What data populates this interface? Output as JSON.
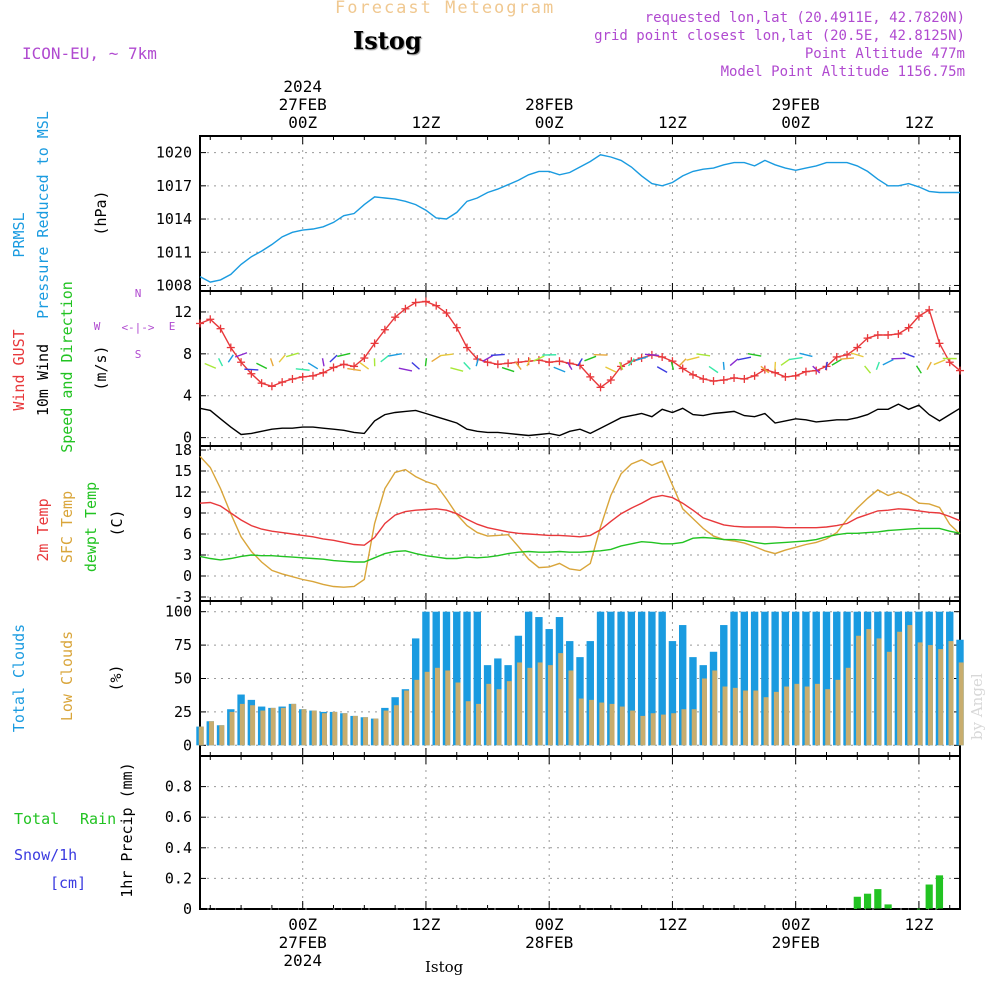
{
  "header": {
    "title": "Forecast Meteogram",
    "station": "Istog",
    "model": "ICON-EU, ~ 7km",
    "requested": "requested lon,lat (20.4911E, 42.7820N)",
    "gridpoint": "grid point closest lon,lat (20.5E, 42.8125N)",
    "altitude": "Point Altitude 477m",
    "model_altitude": "Model Point Altitude 1156.75m",
    "watermark": "by Angel",
    "footer_station": "Istog"
  },
  "colors": {
    "pressure": "#1a9be0",
    "gust": "#e8383b",
    "wind": "#000000",
    "temp": "#e8383b",
    "sfc": "#d9a53a",
    "dewpt": "#22c322",
    "total_clouds": "#1a9be0",
    "low_clouds": "#c8ad6e",
    "rain": "#22c322",
    "snow": "#3a3ae0",
    "header_title": "#f0c890",
    "header_info": "#b04ad0"
  },
  "chart_data": [
    {
      "type": "line",
      "panel": "pressure",
      "ylabel": [
        "PRMSL",
        "Pressure Reduced to MSL",
        "(hPa)"
      ],
      "yticks": [
        1008,
        1011,
        1014,
        1017,
        1020
      ],
      "ylim": [
        1007.5,
        1021.5
      ],
      "x_hours": [
        -10,
        -9,
        -8,
        -7,
        -6,
        -5,
        -4,
        -3,
        -2,
        -1,
        0,
        1,
        2,
        3,
        4,
        5,
        6,
        7,
        8,
        9,
        10,
        11,
        12,
        13,
        14,
        15,
        16,
        17,
        18,
        19,
        20,
        21,
        22,
        23,
        24,
        25,
        26,
        27,
        28,
        29,
        30,
        31,
        32,
        33,
        34,
        35,
        36,
        37,
        38,
        39,
        40,
        41,
        42,
        43,
        44,
        45,
        46,
        47,
        48,
        49,
        50,
        51,
        52,
        53,
        54,
        55,
        56,
        57,
        58,
        59,
        60,
        61,
        62,
        63,
        64
      ],
      "series": [
        {
          "name": "PRMSL",
          "values": [
            1008.8,
            1008.3,
            1008.5,
            1009.0,
            1009.9,
            1010.6,
            1011.1,
            1011.7,
            1012.4,
            1012.8,
            1013.0,
            1013.1,
            1013.3,
            1013.7,
            1014.3,
            1014.5,
            1015.3,
            1016.0,
            1015.9,
            1015.8,
            1015.6,
            1015.3,
            1014.8,
            1014.1,
            1014.0,
            1014.6,
            1015.6,
            1015.9,
            1016.4,
            1016.7,
            1017.1,
            1017.5,
            1018.0,
            1018.3,
            1018.3,
            1018.0,
            1018.2,
            1018.7,
            1019.2,
            1019.8,
            1019.6,
            1019.3,
            1018.7,
            1017.9,
            1017.2,
            1017.0,
            1017.3,
            1017.9,
            1018.3,
            1018.5,
            1018.6,
            1018.9,
            1019.1,
            1019.1,
            1018.8,
            1019.3,
            1018.9,
            1018.6,
            1018.4,
            1018.6,
            1018.8,
            1019.1,
            1019.1,
            1019.1,
            1018.8,
            1018.3,
            1017.6,
            1017.0,
            1017.0,
            1017.2,
            1016.9,
            1016.5,
            1016.4,
            1016.4,
            1016.4
          ]
        }
      ]
    },
    {
      "type": "line",
      "panel": "wind",
      "ylabel": [
        "Wind GUST",
        "10m Wind",
        "Speed and Direction",
        "(m/s)"
      ],
      "direction_legend": {
        "n": "N",
        "s": "S",
        "w": "W",
        "e": "E",
        "arrows": "<-|->"
      },
      "yticks": [
        0,
        4,
        8,
        12
      ],
      "ylim": [
        -0.8,
        14
      ],
      "x_hours": [
        -10,
        -9,
        -8,
        -7,
        -6,
        -5,
        -4,
        -3,
        -2,
        -1,
        0,
        1,
        2,
        3,
        4,
        5,
        6,
        7,
        8,
        9,
        10,
        11,
        12,
        13,
        14,
        15,
        16,
        17,
        18,
        19,
        20,
        21,
        22,
        23,
        24,
        25,
        26,
        27,
        28,
        29,
        30,
        31,
        32,
        33,
        34,
        35,
        36,
        37,
        38,
        39,
        40,
        41,
        42,
        43,
        44,
        45,
        46,
        47,
        48,
        49,
        50,
        51,
        52,
        53,
        54,
        55,
        56,
        57,
        58,
        59,
        60,
        61,
        62,
        63,
        64
      ],
      "series": [
        {
          "name": "Wind GUST",
          "values": [
            10.9,
            11.3,
            10.4,
            8.6,
            7.2,
            6.1,
            5.2,
            4.9,
            5.3,
            5.6,
            5.8,
            5.9,
            6.2,
            6.7,
            7.0,
            6.8,
            7.6,
            9.0,
            10.3,
            11.5,
            12.3,
            12.9,
            13.0,
            12.6,
            11.9,
            10.5,
            8.6,
            7.5,
            7.2,
            7.0,
            7.1,
            7.2,
            7.3,
            7.4,
            7.2,
            7.3,
            7.1,
            6.9,
            5.8,
            4.8,
            5.5,
            6.8,
            7.3,
            7.6,
            7.9,
            7.7,
            7.3,
            6.6,
            6.0,
            5.6,
            5.4,
            5.5,
            5.7,
            5.6,
            5.9,
            6.5,
            6.2,
            5.8,
            5.9,
            6.3,
            6.4,
            6.8,
            7.7,
            7.9,
            8.6,
            9.5,
            9.8,
            9.8,
            9.9,
            10.5,
            11.6,
            12.2,
            9.0,
            7.2,
            6.4
          ]
        },
        {
          "name": "10m Wind",
          "values": [
            2.8,
            2.6,
            1.8,
            1.0,
            0.3,
            0.4,
            0.6,
            0.8,
            0.9,
            0.9,
            1.0,
            1.0,
            0.9,
            0.8,
            0.7,
            0.5,
            0.4,
            1.6,
            2.2,
            2.4,
            2.5,
            2.6,
            2.3,
            2.0,
            1.7,
            1.4,
            0.8,
            0.6,
            0.5,
            0.5,
            0.4,
            0.3,
            0.2,
            0.3,
            0.4,
            0.2,
            0.6,
            0.8,
            0.4,
            0.9,
            1.4,
            1.9,
            2.1,
            2.3,
            2.0,
            2.7,
            2.4,
            2.8,
            2.2,
            2.1,
            2.3,
            2.4,
            2.5,
            2.1,
            2.0,
            2.3,
            1.4,
            1.6,
            1.8,
            1.7,
            1.5,
            1.6,
            1.7,
            1.7,
            1.9,
            2.2,
            2.7,
            2.7,
            3.2,
            2.7,
            3.1,
            2.2,
            1.6,
            2.2,
            2.8
          ]
        }
      ],
      "arrow_colors": [
        "#e8c83a",
        "#a8e838",
        "#38e8a8",
        "#1a9be0",
        "#8a2ad0",
        "#3a3ae0",
        "#22c322",
        "#e8a83a"
      ]
    },
    {
      "type": "line",
      "panel": "temperature",
      "ylabel": [
        "2m Temp",
        "SFC Temp",
        "dewpt Temp",
        "(C)"
      ],
      "yticks": [
        -3,
        0,
        3,
        6,
        9,
        12,
        15,
        18
      ],
      "ylim": [
        -3,
        18
      ],
      "x_hours": [
        -10,
        -9,
        -8,
        -7,
        -6,
        -5,
        -4,
        -3,
        -2,
        -1,
        0,
        1,
        2,
        3,
        4,
        5,
        6,
        7,
        8,
        9,
        10,
        11,
        12,
        13,
        14,
        15,
        16,
        17,
        18,
        19,
        20,
        21,
        22,
        23,
        24,
        25,
        26,
        27,
        28,
        29,
        30,
        31,
        32,
        33,
        34,
        35,
        36,
        37,
        38,
        39,
        40,
        41,
        42,
        43,
        44,
        45,
        46,
        47,
        48,
        49,
        50,
        51,
        52,
        53,
        54,
        55,
        56,
        57,
        58,
        59,
        60,
        61,
        62,
        63,
        64
      ],
      "series": [
        {
          "name": "2m Temp",
          "values": [
            10.4,
            10.5,
            10.0,
            9.0,
            8.0,
            7.2,
            6.7,
            6.4,
            6.2,
            6.0,
            5.8,
            5.6,
            5.3,
            5.1,
            4.8,
            4.5,
            4.4,
            5.5,
            7.5,
            8.7,
            9.2,
            9.4,
            9.5,
            9.6,
            9.4,
            8.9,
            8.1,
            7.4,
            6.9,
            6.6,
            6.3,
            6.1,
            6.0,
            5.9,
            5.8,
            5.8,
            5.7,
            5.6,
            5.8,
            6.6,
            7.8,
            8.9,
            9.7,
            10.4,
            11.2,
            11.5,
            11.2,
            10.4,
            9.4,
            8.3,
            7.8,
            7.3,
            7.1,
            7.0,
            7.0,
            7.0,
            7.0,
            6.9,
            6.9,
            6.9,
            6.9,
            7.0,
            7.2,
            7.5,
            8.3,
            8.8,
            9.3,
            9.4,
            9.6,
            9.5,
            9.3,
            9.1,
            9.0,
            8.5,
            7.9
          ]
        },
        {
          "name": "SFC Temp",
          "values": [
            17.1,
            15.5,
            12.5,
            8.9,
            5.6,
            3.5,
            2.0,
            0.8,
            0.3,
            -0.1,
            -0.5,
            -0.8,
            -1.2,
            -1.5,
            -1.6,
            -1.5,
            -0.5,
            7.5,
            12.5,
            14.8,
            15.2,
            14.2,
            13.5,
            13.0,
            11.0,
            8.8,
            7.2,
            6.2,
            5.7,
            5.8,
            5.9,
            4.2,
            2.4,
            1.2,
            1.3,
            1.8,
            1.0,
            0.8,
            1.8,
            7.0,
            11.5,
            14.6,
            16.0,
            16.6,
            15.8,
            16.4,
            13.0,
            9.6,
            8.2,
            6.8,
            5.7,
            5.2,
            5.0,
            4.7,
            4.2,
            3.6,
            3.2,
            3.7,
            4.1,
            4.5,
            4.8,
            5.3,
            6.2,
            8.1,
            9.7,
            11.1,
            12.3,
            11.5,
            12.0,
            11.4,
            10.4,
            10.3,
            9.8,
            7.4,
            6.0
          ]
        },
        {
          "name": "dewpt Temp",
          "values": [
            2.8,
            2.5,
            2.3,
            2.5,
            2.8,
            3.0,
            2.9,
            2.9,
            2.8,
            2.7,
            2.6,
            2.5,
            2.4,
            2.2,
            2.1,
            2.0,
            2.0,
            2.6,
            3.2,
            3.5,
            3.6,
            3.2,
            2.9,
            2.7,
            2.5,
            2.5,
            2.7,
            2.6,
            2.7,
            2.9,
            3.2,
            3.4,
            3.5,
            3.4,
            3.4,
            3.5,
            3.4,
            3.4,
            3.5,
            3.6,
            3.8,
            4.3,
            4.6,
            4.9,
            4.8,
            4.6,
            4.6,
            4.8,
            5.4,
            5.5,
            5.4,
            5.2,
            5.2,
            5.1,
            4.8,
            4.6,
            4.7,
            4.8,
            4.9,
            5.0,
            5.2,
            5.6,
            5.9,
            6.1,
            6.1,
            6.2,
            6.3,
            6.5,
            6.6,
            6.7,
            6.8,
            6.8,
            6.8,
            6.4,
            6.1
          ]
        }
      ]
    },
    {
      "type": "bar",
      "panel": "clouds",
      "ylabel": [
        "Total Clouds",
        "Low Clouds",
        "(%)"
      ],
      "yticks": [
        0,
        25,
        50,
        75,
        100
      ],
      "ylim": [
        -8,
        108
      ],
      "x_hours": [
        -10,
        -9,
        -8,
        -7,
        -6,
        -5,
        -4,
        -3,
        -2,
        -1,
        0,
        1,
        2,
        3,
        4,
        5,
        6,
        7,
        8,
        9,
        10,
        11,
        12,
        13,
        14,
        15,
        16,
        17,
        18,
        19,
        20,
        21,
        22,
        23,
        24,
        25,
        26,
        27,
        28,
        29,
        30,
        31,
        32,
        33,
        34,
        35,
        36,
        37,
        38,
        39,
        40,
        41,
        42,
        43,
        44,
        45,
        46,
        47,
        48,
        49,
        50,
        51,
        52,
        53,
        54,
        55,
        56,
        57,
        58,
        59,
        60,
        61,
        62,
        63,
        64
      ],
      "series": [
        {
          "name": "Total Clouds",
          "values": [
            14,
            18,
            15,
            27,
            38,
            34,
            29,
            28,
            29,
            31,
            27,
            26,
            25,
            25,
            24,
            22,
            21,
            20,
            28,
            36,
            42,
            80,
            100,
            100,
            100,
            100,
            100,
            100,
            60,
            65,
            60,
            82,
            100,
            96,
            87,
            96,
            78,
            66,
            78,
            100,
            100,
            100,
            100,
            100,
            100,
            100,
            78,
            90,
            66,
            60,
            70,
            90,
            100,
            100,
            100,
            100,
            100,
            100,
            100,
            100,
            100,
            100,
            100,
            100,
            100,
            100,
            100,
            100,
            100,
            100,
            100,
            100,
            100,
            100,
            79
          ]
        },
        {
          "name": "Low Clouds",
          "values": [
            14,
            18,
            15,
            25,
            31,
            30,
            26,
            28,
            28,
            31,
            27,
            26,
            24,
            25,
            24,
            22,
            21,
            20,
            26,
            30,
            41,
            49,
            55,
            58,
            56,
            47,
            33,
            31,
            46,
            42,
            48,
            62,
            58,
            62,
            60,
            69,
            56,
            35,
            34,
            32,
            31,
            29,
            26,
            22,
            24,
            23,
            24,
            27,
            27,
            50,
            56,
            44,
            43,
            41,
            41,
            36,
            40,
            44,
            46,
            44,
            46,
            42,
            49,
            58,
            82,
            87,
            80,
            70,
            85,
            90,
            77,
            75,
            72,
            78,
            62
          ]
        }
      ]
    },
    {
      "type": "bar",
      "panel": "precip",
      "ylabel": [
        "1hr Precip (mm)"
      ],
      "legend": [
        "Total",
        "Rain",
        "Snow/1h",
        "[cm]"
      ],
      "yticks": [
        0,
        0.2,
        0.4,
        0.6,
        0.8
      ],
      "ylim": [
        0,
        1
      ],
      "x_hours": [
        54,
        55,
        56,
        57,
        60,
        61,
        62
      ],
      "series": [
        {
          "name": "Rain",
          "values": [
            0.08,
            0.1,
            0.13,
            0.03,
            0.003,
            0.16,
            0.22
          ]
        }
      ]
    }
  ],
  "axis": {
    "top_labels": [
      {
        "hour": 0,
        "lines": [
          "2024",
          "27FEB",
          "00Z"
        ]
      },
      {
        "hour": 12,
        "lines": [
          "12Z"
        ]
      },
      {
        "hour": 24,
        "lines": [
          "28FEB",
          "00Z"
        ]
      },
      {
        "hour": 36,
        "lines": [
          "12Z"
        ]
      },
      {
        "hour": 48,
        "lines": [
          "29FEB",
          "00Z"
        ]
      },
      {
        "hour": 60,
        "lines": [
          "12Z"
        ]
      }
    ],
    "bottom_labels": [
      {
        "hour": 0,
        "lines": [
          "00Z",
          "27FEB",
          "2024"
        ]
      },
      {
        "hour": 12,
        "lines": [
          "12Z"
        ]
      },
      {
        "hour": 24,
        "lines": [
          "00Z",
          "28FEB"
        ]
      },
      {
        "hour": 36,
        "lines": [
          "12Z"
        ]
      },
      {
        "hour": 48,
        "lines": [
          "00Z",
          "29FEB"
        ]
      },
      {
        "hour": 60,
        "lines": [
          "12Z"
        ]
      }
    ]
  }
}
